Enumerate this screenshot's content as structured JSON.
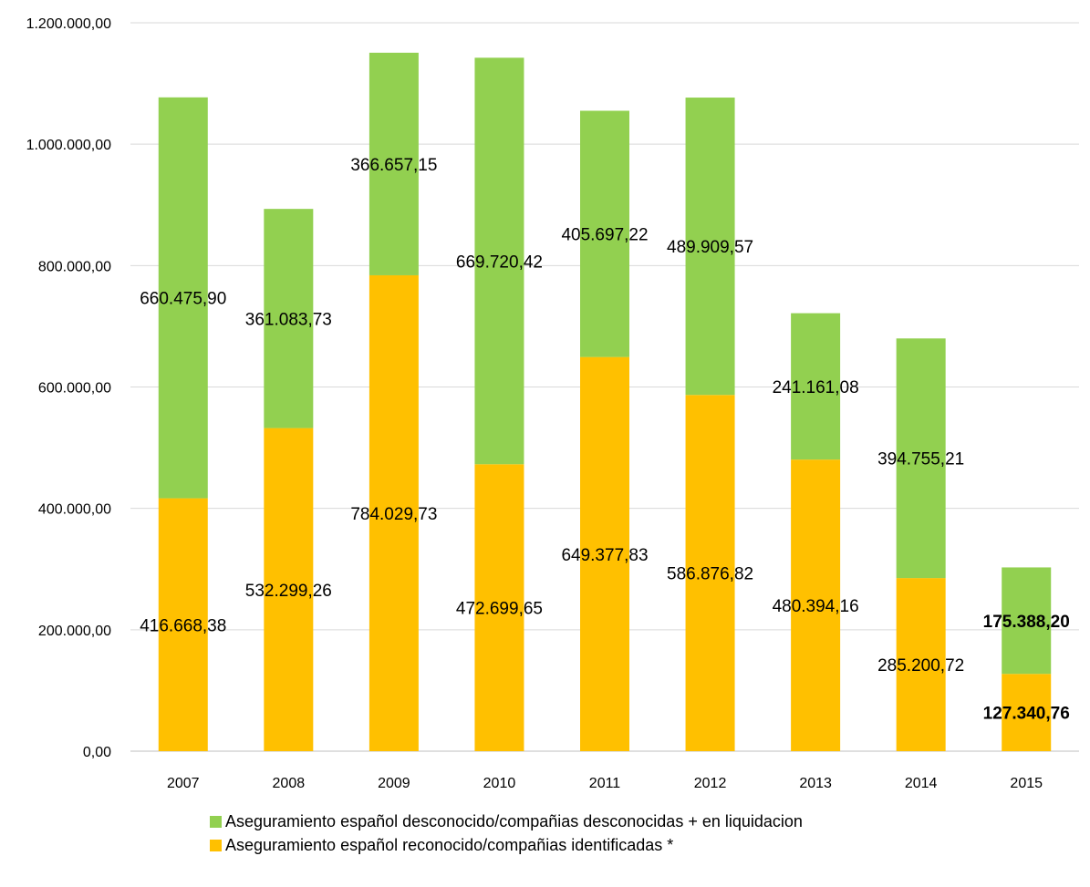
{
  "chart_data": {
    "type": "bar",
    "stacked": true,
    "categories": [
      "2007",
      "2008",
      "2009",
      "2010",
      "2011",
      "2012",
      "2013",
      "2014",
      "2015"
    ],
    "series": [
      {
        "name": "Aseguramiento español reconocido/compañias identificadas *",
        "color": "#FFC000",
        "values": [
          416668.38,
          532299.26,
          784029.73,
          472699.65,
          649377.83,
          586876.82,
          480394.16,
          285200.72,
          127340.76
        ],
        "labels": [
          "416.668,38",
          "532.299,26",
          "784.029,73",
          "472.699,65",
          "649.377,83",
          "586.876,82",
          "480.394,16",
          "285.200,72",
          "127.340,76"
        ]
      },
      {
        "name": "Aseguramiento español desconocido/compañias desconocidas + en liquidacion",
        "color": "#92D050",
        "values": [
          660475.9,
          361083.73,
          366657.15,
          669720.42,
          405697.22,
          489909.57,
          241161.08,
          394755.21,
          175388.2
        ],
        "labels": [
          "660.475,90",
          "361.083,73",
          "366.657,15",
          "669.720,42",
          "405.697,22",
          "489.909,57",
          "241.161,08",
          "394.755,21",
          "175.388,20"
        ]
      }
    ],
    "y_ticks": [
      "0,00",
      "200.000,00",
      "400.000,00",
      "600.000,00",
      "800.000,00",
      "1.000.000,00",
      "1.200.000,00"
    ],
    "ylim": [
      0,
      1200000
    ],
    "grid": true,
    "legend_position": "bottom",
    "title": "",
    "xlabel": "",
    "ylabel": ""
  }
}
